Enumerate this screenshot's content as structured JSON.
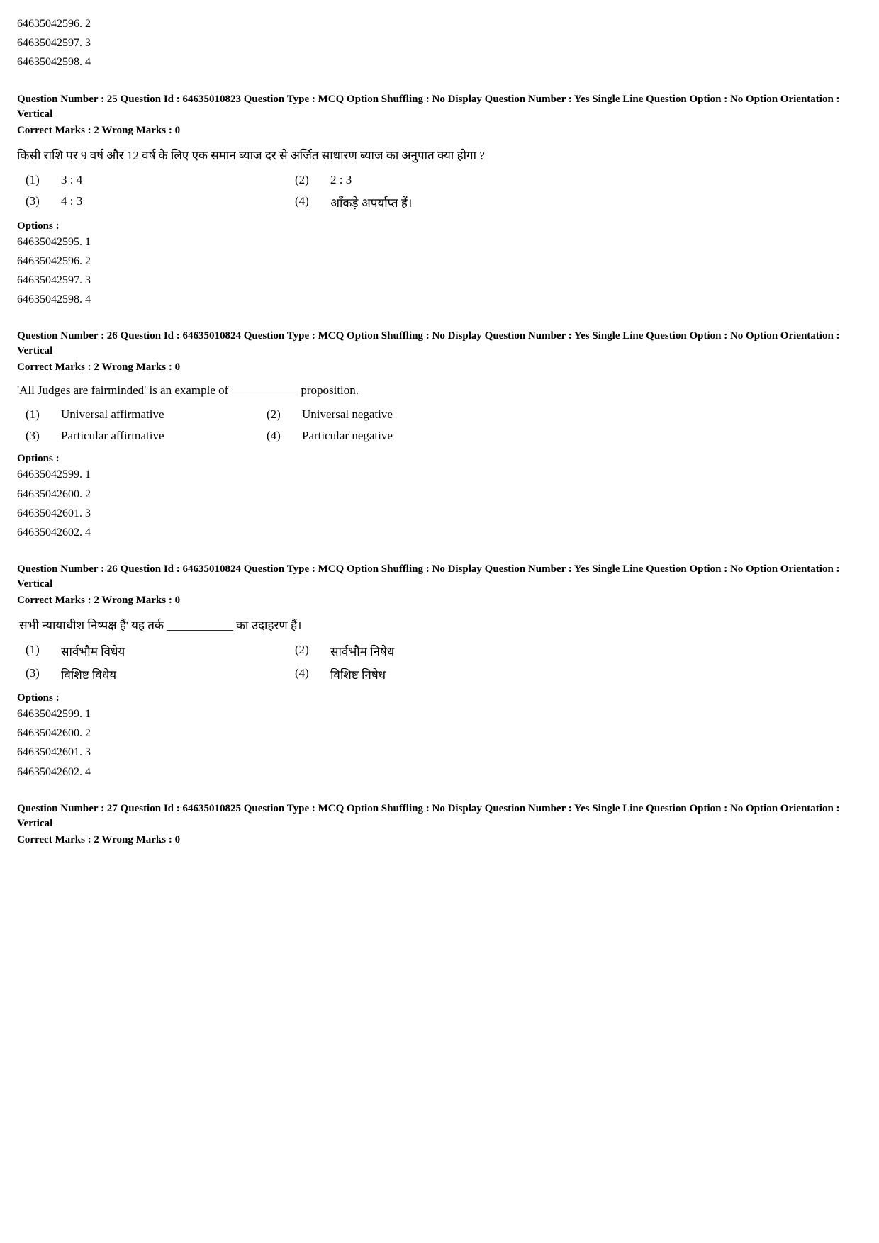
{
  "top_options": [
    "64635042596. 2",
    "64635042597. 3",
    "64635042598. 4"
  ],
  "questions": [
    {
      "header": "Question Number : 25  Question Id : 64635010823  Question Type : MCQ  Option Shuffling : No  Display Question Number : Yes  Single Line Question Option : No  Option Orientation : Vertical",
      "marks": "Correct Marks : 2  Wrong Marks : 0",
      "text": "किसी राशि पर 9 वर्ष और 12 वर्ष के लिए एक समान ब्याज दर से अर्जित साधारण ब्याज का अनुपात क्या होगा ?",
      "choices": [
        {
          "n": "(1)",
          "t": "3 : 4"
        },
        {
          "n": "(2)",
          "t": "2 : 3"
        },
        {
          "n": "(3)",
          "t": "4 : 3"
        },
        {
          "n": "(4)",
          "t": "आँकड़े अपर्याप्त हैं।"
        }
      ],
      "options_label": "Options :",
      "options": [
        "64635042595. 1",
        "64635042596. 2",
        "64635042597. 3",
        "64635042598. 4"
      ]
    },
    {
      "header": "Question Number : 26  Question Id : 64635010824  Question Type : MCQ  Option Shuffling : No  Display Question Number : Yes  Single Line Question Option : No  Option Orientation : Vertical",
      "marks": "Correct Marks : 2  Wrong Marks : 0",
      "text": "'All Judges are fairminded' is an example of ___________ proposition.",
      "choices": [
        {
          "n": "(1)",
          "t": "Universal affirmative"
        },
        {
          "n": "(2)",
          "t": "Universal negative"
        },
        {
          "n": "(3)",
          "t": "Particular affirmative"
        },
        {
          "n": "(4)",
          "t": "Particular negative"
        }
      ],
      "options_label": "Options :",
      "options": [
        "64635042599. 1",
        "64635042600. 2",
        "64635042601. 3",
        "64635042602. 4"
      ]
    },
    {
      "header": "Question Number : 26  Question Id : 64635010824  Question Type : MCQ  Option Shuffling : No  Display Question Number : Yes  Single Line Question Option : No  Option Orientation : Vertical",
      "marks": "Correct Marks : 2  Wrong Marks : 0",
      "text": "'सभी न्यायाधीश निष्पक्ष हैं' यह तर्क ___________ का उदाहरण हैं।",
      "choices": [
        {
          "n": "(1)",
          "t": "सार्वभौम विधेय"
        },
        {
          "n": "(2)",
          "t": "सार्वभौम निषेध"
        },
        {
          "n": "(3)",
          "t": "विशिष्ट विधेय"
        },
        {
          "n": "(4)",
          "t": "विशिष्ट निषेध"
        }
      ],
      "options_label": "Options :",
      "options": [
        "64635042599. 1",
        "64635042600. 2",
        "64635042601. 3",
        "64635042602. 4"
      ]
    },
    {
      "header": "Question Number : 27  Question Id : 64635010825  Question Type : MCQ  Option Shuffling : No  Display Question Number : Yes  Single Line Question Option : No  Option Orientation : Vertical",
      "marks": "Correct Marks : 2  Wrong Marks : 0",
      "text": null,
      "choices": null,
      "options_label": null,
      "options": null
    }
  ]
}
